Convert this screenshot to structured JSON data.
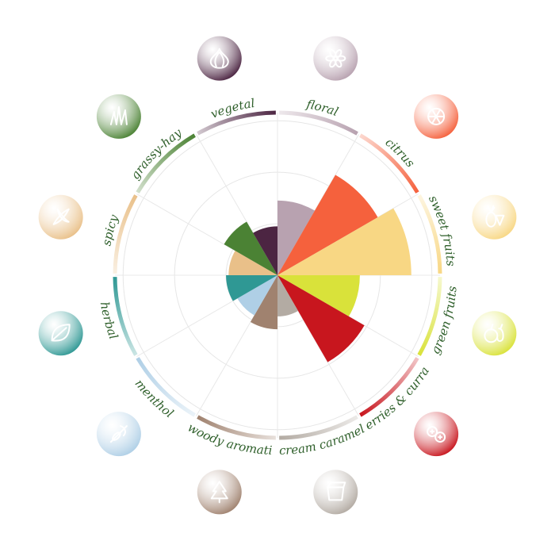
{
  "chart_data": {
    "type": "polar-area",
    "title": "",
    "rmax": 3,
    "ring_levels": [
      1,
      2,
      3
    ],
    "categories": [
      {
        "name": "floral",
        "value": 1.45,
        "color": "#b8a2b0",
        "icon": "flower-icon"
      },
      {
        "name": "citrus",
        "value": 2.25,
        "color": "#f5613d",
        "icon": "orange-slice-icon"
      },
      {
        "name": "sweet fruits",
        "value": 2.6,
        "color": "#f8d784",
        "icon": "pineapple-strawberry-icon"
      },
      {
        "name": "green fruits",
        "value": 1.6,
        "color": "#d9e23a",
        "icon": "apple-pear-icon"
      },
      {
        "name": "berries & currant",
        "value": 1.95,
        "color": "#c8161e",
        "icon": "berries-icon"
      },
      {
        "name": "cream caramel",
        "value": 0.8,
        "color": "#b3aba3",
        "icon": "caramel-icon"
      },
      {
        "name": "woody aromatic",
        "value": 1.05,
        "color": "#a0826f",
        "icon": "pine-tree-icon"
      },
      {
        "name": "menthol",
        "value": 0.9,
        "color": "#afcfe6",
        "icon": "mint-icon"
      },
      {
        "name": "herbal",
        "value": 1.0,
        "color": "#2f9894",
        "icon": "leaf-icon"
      },
      {
        "name": "spicy",
        "value": 0.95,
        "color": "#e9c089",
        "icon": "chili-icon"
      },
      {
        "name": "grassy-hay",
        "value": 1.2,
        "color": "#4b8234",
        "icon": "grass-icon"
      },
      {
        "name": "vegetal",
        "value": 0.95,
        "color": "#4c2542",
        "icon": "onion-icon"
      }
    ],
    "grid": true,
    "legend": "none"
  }
}
